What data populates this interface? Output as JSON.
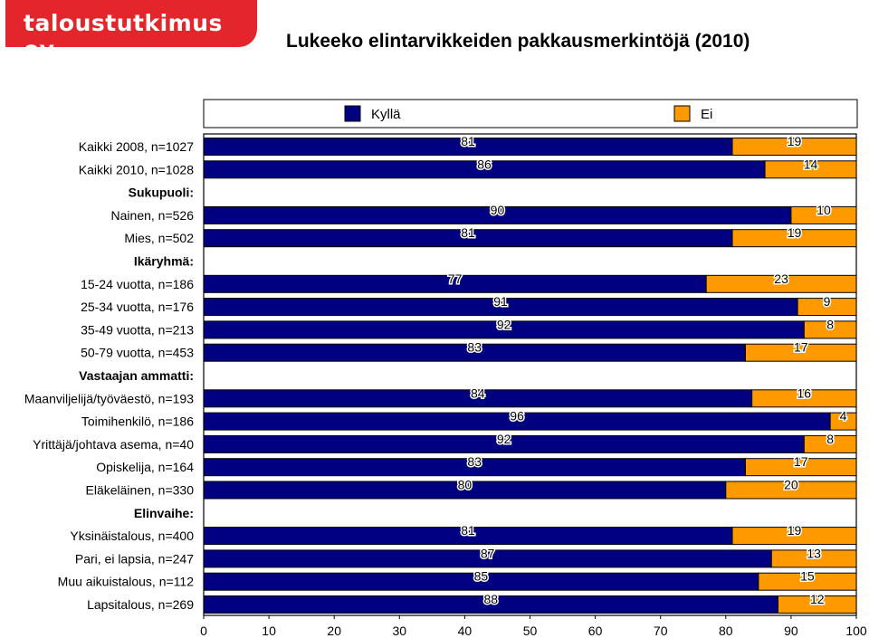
{
  "header": {
    "logo_text": "taloustutkimus oy",
    "title": "Lukeeko elintarvikkeiden pakkausmerkintöjä (2010)"
  },
  "colors": {
    "yes": "#000080",
    "no": "#ff9900",
    "logo_background": "#e3262c"
  },
  "chart_data": {
    "type": "bar",
    "orientation": "horizontal",
    "stacked": true,
    "title": "Lukeeko elintarvikkeiden pakkausmerkintöjä (2010)",
    "xlim": [
      0,
      100
    ],
    "xticks": [
      0,
      10,
      20,
      30,
      40,
      50,
      60,
      70,
      80,
      90,
      100
    ],
    "legend_position": "top",
    "categories": [
      "Kaikki 2008, n=1027",
      "Kaikki 2010, n=1028",
      "Sukupuoli:",
      "Nainen, n=526",
      "Mies, n=502",
      "Ikäryhmä:",
      "15-24 vuotta, n=186",
      "25-34 vuotta, n=176",
      "35-49 vuotta, n=213",
      "50-79 vuotta, n=453",
      "Vastaajan ammatti:",
      "Maanviljelijä/työväestö, n=193",
      "Toimihenkilö, n=186",
      "Yrittäjä/johtava asema, n=40",
      "Opiskelija, n=164",
      "Eläkeläinen, n=330",
      "Elinvaihe:",
      "Yksinäistalous, n=400",
      "Pari, ei lapsia, n=247",
      "Muu aikuistalous, n=112",
      "Lapsitalous, n=269"
    ],
    "group_headers": [
      "Sukupuoli:",
      "Ikäryhmä:",
      "Vastaajan ammatti:",
      "Elinvaihe:"
    ],
    "series": [
      {
        "name": "Kyllä",
        "color": "#000080",
        "values": [
          81,
          86,
          null,
          90,
          81,
          null,
          77,
          91,
          92,
          83,
          null,
          84,
          96,
          92,
          83,
          80,
          null,
          81,
          87,
          85,
          88
        ]
      },
      {
        "name": "Ei",
        "color": "#ff9900",
        "values": [
          19,
          14,
          null,
          10,
          19,
          null,
          23,
          9,
          8,
          17,
          null,
          16,
          4,
          8,
          17,
          20,
          null,
          19,
          13,
          15,
          12
        ]
      }
    ]
  }
}
